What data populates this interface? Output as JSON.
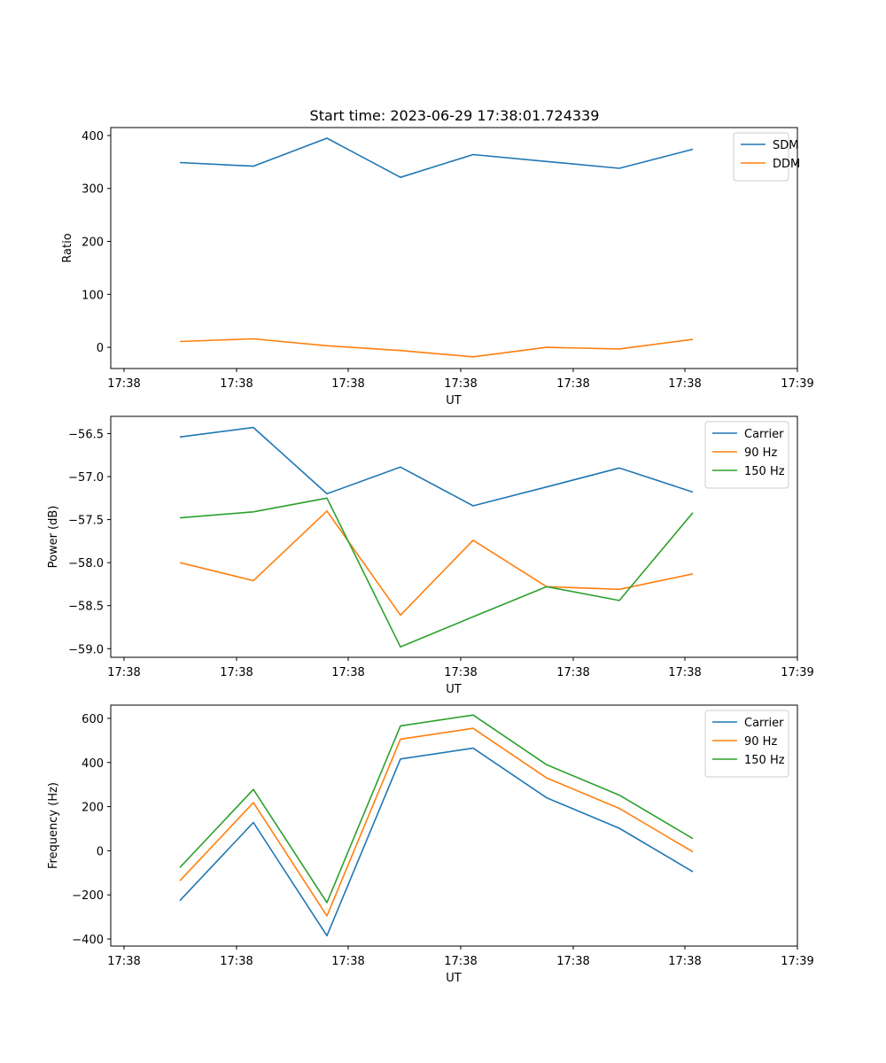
{
  "title": "Start time: 2023-06-29 17:38:01.724339",
  "chart_data": [
    {
      "type": "line",
      "title": "Start time: 2023-06-29 17:38:01.724339",
      "xlabel": "UT",
      "ylabel": "Ratio",
      "x": [
        1,
        2,
        3,
        4,
        5,
        6,
        7,
        8
      ],
      "xtick_labels": [
        "17:38",
        "17:38",
        "17:38",
        "17:38",
        "17:38",
        "17:38",
        "17:38",
        "17:39"
      ],
      "ylim": [
        -40,
        415
      ],
      "yticks": [
        0,
        100,
        200,
        300,
        400
      ],
      "ytick_labels": [
        "0",
        "100",
        "200",
        "300",
        "400"
      ],
      "legend_position": "top-right",
      "grid": false,
      "series": [
        {
          "name": "SDM",
          "color": "#1f77b4",
          "values": [
            349,
            342,
            395,
            321,
            364,
            351,
            338,
            374
          ]
        },
        {
          "name": "DDM",
          "color": "#ff7f0e",
          "values": [
            11,
            16,
            3,
            -6,
            -18,
            0,
            -3,
            15
          ]
        }
      ]
    },
    {
      "type": "line",
      "xlabel": "UT",
      "ylabel": "Power (dB)",
      "x": [
        1,
        2,
        3,
        4,
        5,
        6,
        7,
        8
      ],
      "xtick_labels": [
        "17:38",
        "17:38",
        "17:38",
        "17:38",
        "17:38",
        "17:38",
        "17:38",
        "17:39"
      ],
      "ylim": [
        -59.1,
        -56.3
      ],
      "yticks": [
        -59.0,
        -58.5,
        -58.0,
        -57.5,
        -57.0,
        -56.5
      ],
      "ytick_labels": [
        "−59.0",
        "−58.5",
        "−58.0",
        "−57.5",
        "−57.0",
        "−56.5"
      ],
      "legend_position": "top-right",
      "grid": false,
      "series": [
        {
          "name": "Carrier",
          "color": "#1f77b4",
          "values": [
            -56.54,
            -56.43,
            -57.2,
            -56.89,
            -57.34,
            -57.12,
            -56.9,
            -57.18
          ]
        },
        {
          "name": "90 Hz",
          "color": "#ff7f0e",
          "values": [
            -58.0,
            -58.21,
            -57.4,
            -58.61,
            -57.74,
            -58.28,
            -58.31,
            -58.13
          ]
        },
        {
          "name": "150 Hz",
          "color": "#2ca02c",
          "values": [
            -57.48,
            -57.41,
            -57.25,
            -58.98,
            -58.63,
            -58.28,
            -58.44,
            -57.42
          ]
        }
      ]
    },
    {
      "type": "line",
      "xlabel": "UT",
      "ylabel": "Frequency (Hz)",
      "x": [
        1,
        2,
        3,
        4,
        5,
        6,
        7,
        8
      ],
      "xtick_labels": [
        "17:38",
        "17:38",
        "17:38",
        "17:38",
        "17:38",
        "17:38",
        "17:38",
        "17:39"
      ],
      "ylim": [
        -432,
        660
      ],
      "yticks": [
        -400,
        -200,
        0,
        200,
        400,
        600
      ],
      "ytick_labels": [
        "−400",
        "−200",
        "0",
        "200",
        "400",
        "600"
      ],
      "legend_position": "top-right",
      "grid": false,
      "series": [
        {
          "name": "Carrier",
          "color": "#1f77b4",
          "values": [
            -226,
            128,
            -385,
            416,
            465,
            240,
            102,
            -95
          ]
        },
        {
          "name": "90 Hz",
          "color": "#ff7f0e",
          "values": [
            -136,
            218,
            -295,
            506,
            555,
            330,
            192,
            -5
          ]
        },
        {
          "name": "150 Hz",
          "color": "#2ca02c",
          "values": [
            -76,
            278,
            -235,
            566,
            615,
            390,
            252,
            55
          ]
        }
      ]
    }
  ]
}
